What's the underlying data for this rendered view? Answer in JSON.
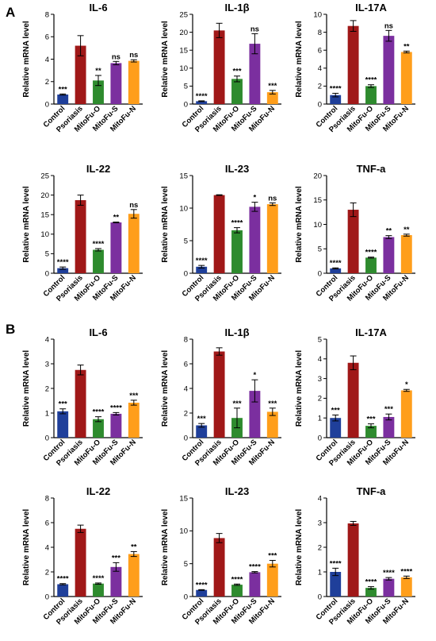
{
  "panel_labels": [
    "A",
    "B"
  ],
  "colors": [
    "#1f3f9a",
    "#a01818",
    "#2e8b2e",
    "#7b2f9f",
    "#ff9e1b"
  ],
  "chart_data": [
    {
      "type": "bar",
      "panel": "A",
      "title": "IL-6",
      "ylabel": "Relative mRNA level",
      "categories": [
        "Control",
        "Psoriasis",
        "MitoFu-O",
        "MitoFu-S",
        "MitoFu-N"
      ],
      "values": [
        0.85,
        5.2,
        2.1,
        3.65,
        3.85
      ],
      "errors": [
        0.05,
        0.9,
        0.45,
        0.15,
        0.1
      ],
      "significance": [
        "***",
        "",
        "**",
        "ns",
        "ns"
      ],
      "ylim": [
        0,
        8
      ],
      "yticks": [
        0,
        2,
        4,
        6,
        8
      ]
    },
    {
      "type": "bar",
      "panel": "A",
      "title": "IL-1β",
      "ylabel": "Relative mRNA level",
      "categories": [
        "Control",
        "Psoriasis",
        "MitoFu-O",
        "MitoFu-S",
        "MitoFu-N"
      ],
      "values": [
        0.8,
        20.5,
        7.0,
        16.8,
        3.3
      ],
      "errors": [
        0.1,
        2.0,
        0.8,
        2.8,
        0.5
      ],
      "significance": [
        "****",
        "",
        "***",
        "ns",
        "***"
      ],
      "ylim": [
        0,
        25
      ],
      "yticks": [
        0,
        5,
        10,
        15,
        20,
        25
      ]
    },
    {
      "type": "bar",
      "panel": "A",
      "title": "IL-17A",
      "ylabel": "Relative mRNA level",
      "categories": [
        "Control",
        "Psoriasis",
        "MitoFu-O",
        "MitoFu-S",
        "MitoFu-N"
      ],
      "values": [
        1.0,
        8.7,
        2.0,
        7.6,
        5.8
      ],
      "errors": [
        0.2,
        0.6,
        0.15,
        0.6,
        0.1
      ],
      "significance": [
        "****",
        "",
        "****",
        "ns",
        "**"
      ],
      "ylim": [
        0,
        10
      ],
      "yticks": [
        0,
        2,
        4,
        6,
        8,
        10
      ]
    },
    {
      "type": "bar",
      "panel": "A",
      "title": "IL-22",
      "ylabel": "Relative mRNA level",
      "categories": [
        "Control",
        "Psoriasis",
        "MitoFu-O",
        "MitoFu-S",
        "MitoFu-N"
      ],
      "values": [
        1.3,
        18.7,
        6.0,
        13.0,
        15.2
      ],
      "errors": [
        0.3,
        1.3,
        0.3,
        0.1,
        1.1
      ],
      "significance": [
        "****",
        "",
        "****",
        "**",
        "ns"
      ],
      "ylim": [
        0,
        25
      ],
      "yticks": [
        0,
        5,
        10,
        15,
        20,
        25
      ]
    },
    {
      "type": "bar",
      "panel": "A",
      "title": "IL-23",
      "ylabel": "Relative mRNA level",
      "categories": [
        "Control",
        "Psoriasis",
        "MitoFu-O",
        "MitoFu-S",
        "MitoFu-N"
      ],
      "values": [
        1.0,
        12.0,
        6.6,
        10.2,
        10.6
      ],
      "errors": [
        0.2,
        0.05,
        0.4,
        0.7,
        0.2
      ],
      "significance": [
        "****",
        "",
        "****",
        "*",
        "ns"
      ],
      "ylim": [
        0,
        15
      ],
      "yticks": [
        0,
        5,
        10,
        15
      ]
    },
    {
      "type": "bar",
      "panel": "A",
      "title": "TNF-a",
      "ylabel": "Relative mRNA level",
      "categories": [
        "Control",
        "Psoriasis",
        "MitoFu-O",
        "MitoFu-S",
        "MitoFu-N"
      ],
      "values": [
        1.0,
        13.0,
        3.2,
        7.4,
        7.8
      ],
      "errors": [
        0.1,
        1.4,
        0.1,
        0.3,
        0.2
      ],
      "significance": [
        "****",
        "",
        "****",
        "**",
        "**"
      ],
      "ylim": [
        0,
        20
      ],
      "yticks": [
        0,
        5,
        10,
        15,
        20
      ]
    },
    {
      "type": "bar",
      "panel": "B",
      "title": "IL-6",
      "ylabel": "Relative mRNA level",
      "categories": [
        "Control",
        "Psoriasis",
        "MitoFu-O",
        "MitoFu-S",
        "MitoFu-N"
      ],
      "values": [
        1.07,
        2.75,
        0.75,
        0.97,
        1.42
      ],
      "errors": [
        0.1,
        0.2,
        0.1,
        0.05,
        0.1
      ],
      "significance": [
        "***",
        "",
        "****",
        "****",
        "***"
      ],
      "ylim": [
        0,
        4
      ],
      "yticks": [
        0,
        1,
        2,
        3,
        4
      ]
    },
    {
      "type": "bar",
      "panel": "B",
      "title": "IL-1β",
      "ylabel": "Relative mRNA level",
      "categories": [
        "Control",
        "Psoriasis",
        "MitoFu-O",
        "MitoFu-S",
        "MitoFu-N"
      ],
      "values": [
        1.0,
        7.0,
        1.6,
        3.8,
        2.1
      ],
      "errors": [
        0.15,
        0.3,
        0.8,
        0.9,
        0.3
      ],
      "significance": [
        "***",
        "",
        "***",
        "*",
        "***"
      ],
      "ylim": [
        0,
        8
      ],
      "yticks": [
        0,
        2,
        4,
        6,
        8
      ]
    },
    {
      "type": "bar",
      "panel": "B",
      "title": "IL-17A",
      "ylabel": "Relative mRNA level",
      "categories": [
        "Control",
        "Psoriasis",
        "MitoFu-O",
        "MitoFu-S",
        "MitoFu-N"
      ],
      "values": [
        1.0,
        3.8,
        0.6,
        1.05,
        2.4
      ],
      "errors": [
        0.15,
        0.35,
        0.1,
        0.15,
        0.05
      ],
      "significance": [
        "***",
        "",
        "***",
        "***",
        "*"
      ],
      "ylim": [
        0,
        5
      ],
      "yticks": [
        0,
        1,
        2,
        3,
        4,
        5
      ]
    },
    {
      "type": "bar",
      "panel": "B",
      "title": "IL-22",
      "ylabel": "Relative mRNA level",
      "categories": [
        "Control",
        "Psoriasis",
        "MitoFu-O",
        "MitoFu-S",
        "MitoFu-N"
      ],
      "values": [
        1.0,
        5.5,
        1.05,
        2.4,
        3.45
      ],
      "errors": [
        0.05,
        0.3,
        0.05,
        0.35,
        0.2
      ],
      "significance": [
        "****",
        "",
        "****",
        "***",
        "**"
      ],
      "ylim": [
        0,
        8
      ],
      "yticks": [
        0,
        2,
        4,
        6,
        8
      ]
    },
    {
      "type": "bar",
      "panel": "B",
      "title": "IL-23",
      "ylabel": "Relative mRNA level",
      "categories": [
        "Control",
        "Psoriasis",
        "MitoFu-O",
        "MitoFu-S",
        "MitoFu-N"
      ],
      "values": [
        1.0,
        8.9,
        1.8,
        3.7,
        5.0
      ],
      "errors": [
        0.05,
        0.7,
        0.1,
        0.1,
        0.5
      ],
      "significance": [
        "****",
        "",
        "****",
        "****",
        "***"
      ],
      "ylim": [
        0,
        15
      ],
      "yticks": [
        0,
        5,
        10,
        15
      ]
    },
    {
      "type": "bar",
      "panel": "B",
      "title": "TNF-a",
      "ylabel": "Relative mRNA level",
      "categories": [
        "Control",
        "Psoriasis",
        "MitoFu-O",
        "MitoFu-S",
        "MitoFu-N"
      ],
      "values": [
        1.0,
        2.97,
        0.35,
        0.72,
        0.78
      ],
      "errors": [
        0.15,
        0.08,
        0.05,
        0.05,
        0.05
      ],
      "significance": [
        "****",
        "",
        "****",
        "****",
        "****"
      ],
      "ylim": [
        0,
        4
      ],
      "yticks": [
        0,
        1,
        2,
        3,
        4
      ]
    }
  ]
}
